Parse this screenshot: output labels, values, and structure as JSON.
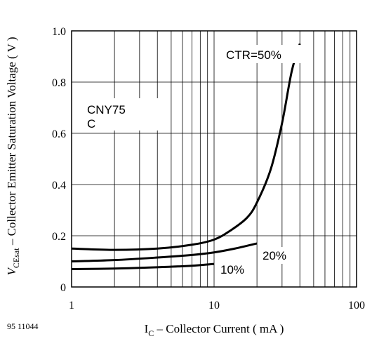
{
  "figure_id": "95 11044",
  "chart_data": {
    "type": "line",
    "title": "",
    "x_axis": {
      "label_main": "I",
      "label_sub": "C",
      "label_rest": " – Collector Current ( mA )",
      "scale": "log",
      "range": [
        1,
        100
      ],
      "tick_labels": [
        "1",
        "10",
        "100"
      ]
    },
    "y_axis": {
      "label_main": "V",
      "label_sub": "CEsat",
      "label_rest": " – Collector Emitter Saturation Voltage ( V )",
      "scale": "linear",
      "range": [
        0,
        1.0
      ],
      "tick_values": [
        0,
        0.2,
        0.4,
        0.6,
        0.8,
        1.0
      ],
      "tick_labels": [
        "0",
        "0.2",
        "0.4",
        "0.6",
        "0.8",
        "1.0"
      ]
    },
    "grid": true,
    "device_label": [
      "CNY75",
      "C"
    ],
    "series": [
      {
        "name": "CTR=50%",
        "x": [
          1,
          2,
          4,
          7,
          10,
          13,
          17,
          20,
          25,
          30,
          35,
          40
        ],
        "y": [
          0.15,
          0.145,
          0.15,
          0.165,
          0.185,
          0.22,
          0.27,
          0.33,
          0.46,
          0.64,
          0.84,
          0.95
        ]
      },
      {
        "name": "20%",
        "x": [
          1,
          2,
          4,
          7,
          10,
          14,
          20
        ],
        "y": [
          0.1,
          0.105,
          0.115,
          0.125,
          0.135,
          0.15,
          0.17
        ]
      },
      {
        "name": "10%",
        "x": [
          1,
          2,
          4,
          7,
          10
        ],
        "y": [
          0.07,
          0.072,
          0.077,
          0.083,
          0.09
        ]
      }
    ]
  }
}
